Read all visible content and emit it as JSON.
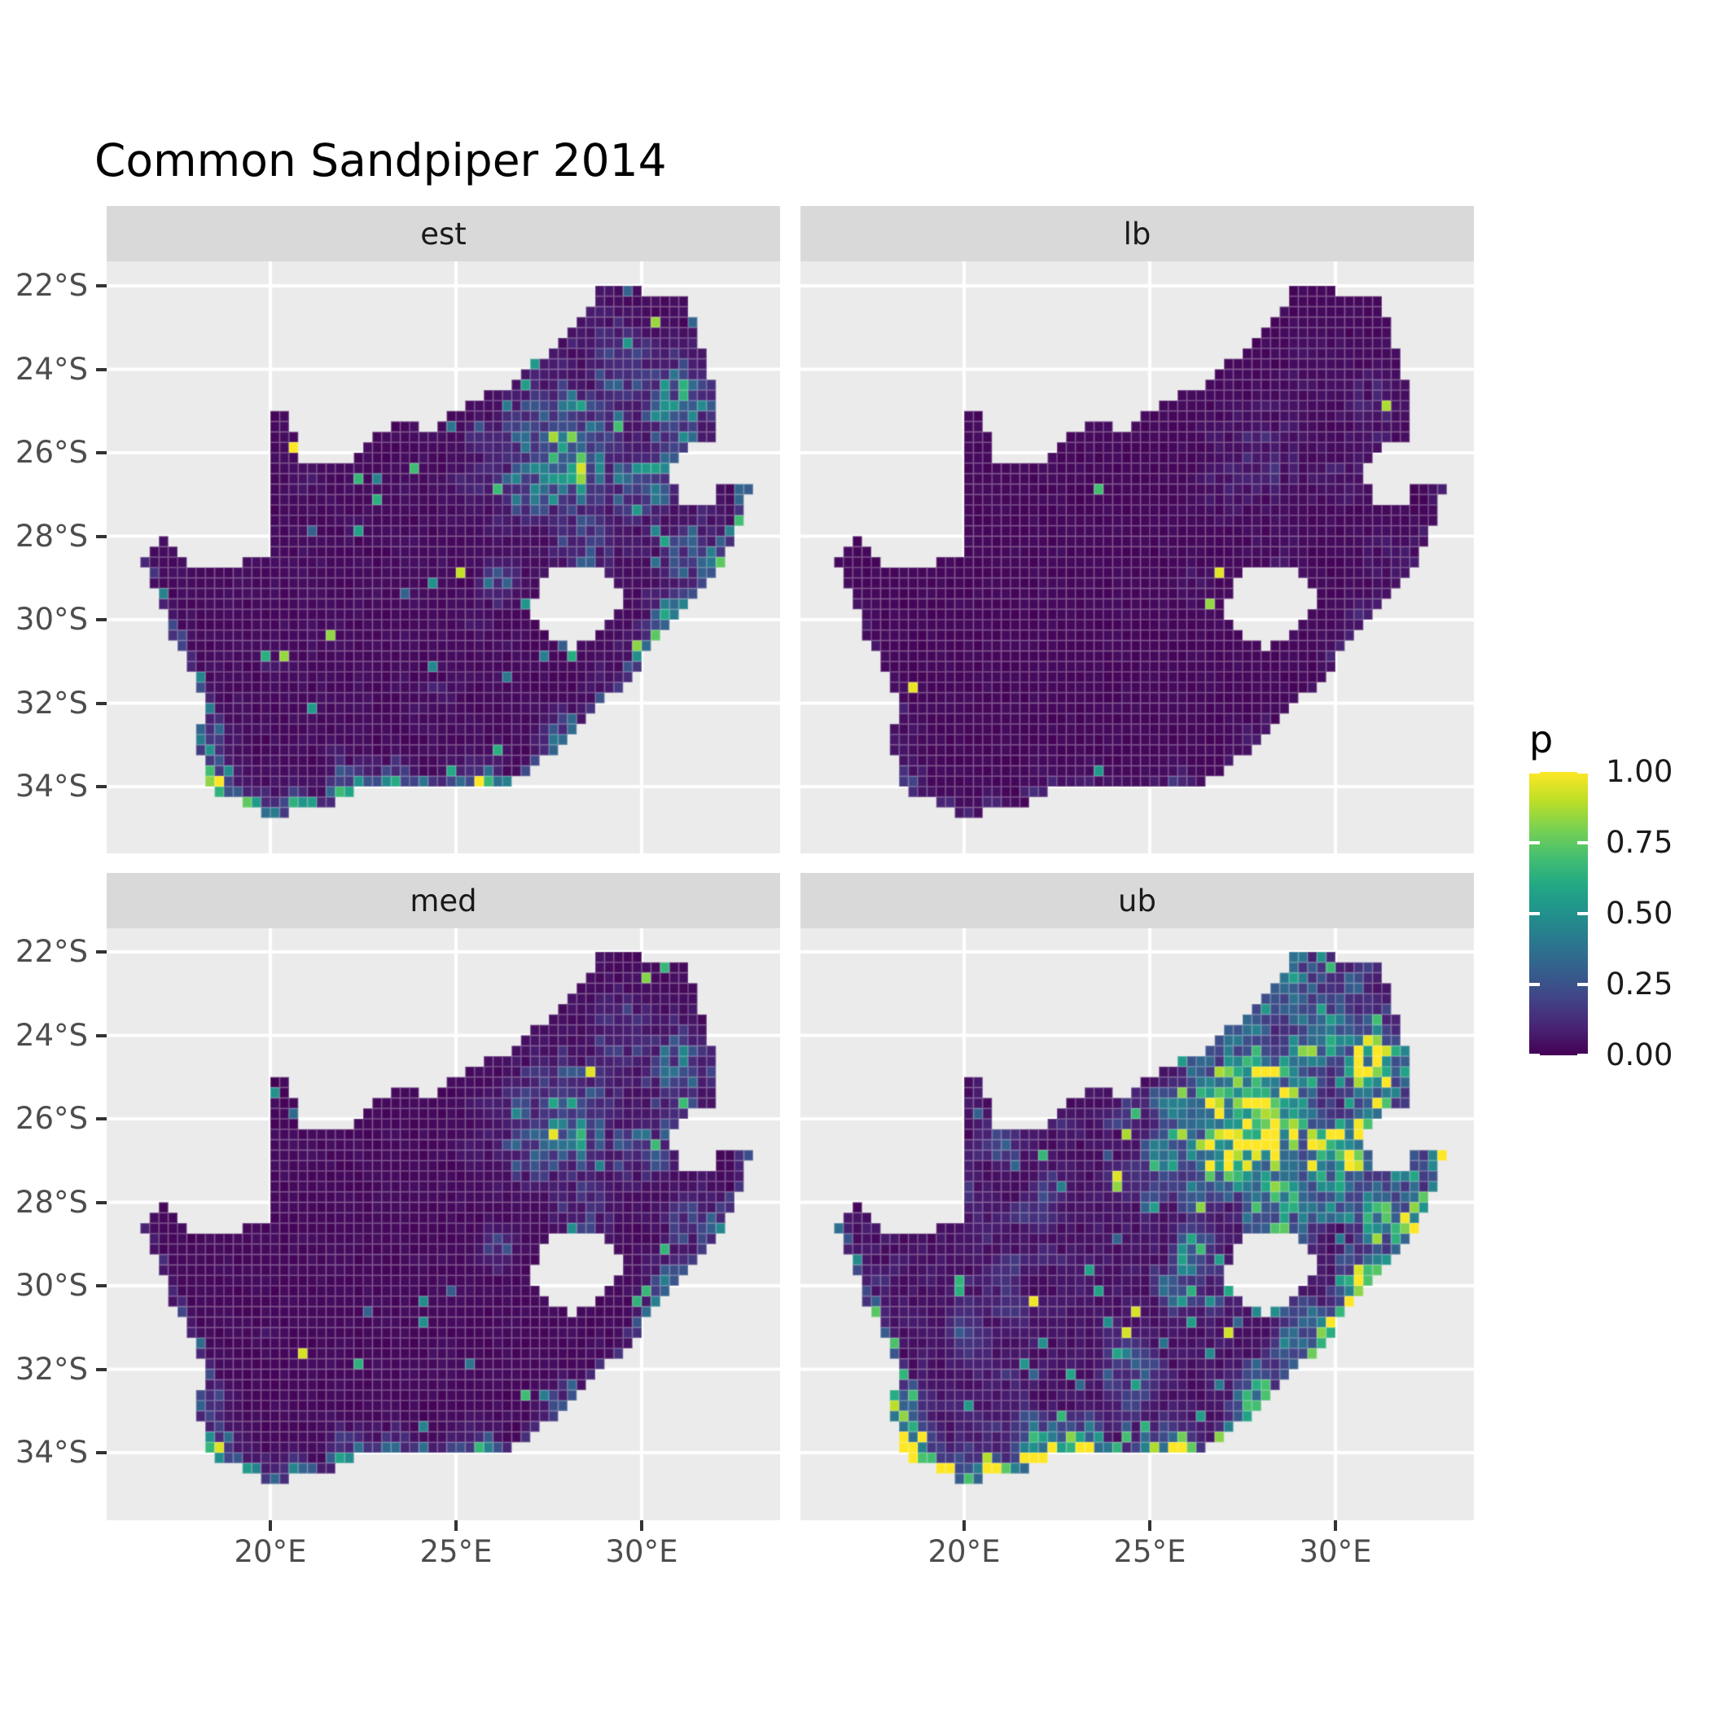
{
  "title": "Common Sandpiper 2014",
  "facets": [
    {
      "id": "est",
      "label": "est"
    },
    {
      "id": "lb",
      "label": "lb"
    },
    {
      "id": "med",
      "label": "med"
    },
    {
      "id": "ub",
      "label": "ub"
    }
  ],
  "axes": {
    "x": {
      "ticks": [
        {
          "label": "20°E",
          "value": 20
        },
        {
          "label": "25°E",
          "value": 25
        },
        {
          "label": "30°E",
          "value": 30
        }
      ]
    },
    "y": {
      "ticks": [
        {
          "label": "22°S",
          "value": -22
        },
        {
          "label": "24°S",
          "value": -24
        },
        {
          "label": "26°S",
          "value": -26
        },
        {
          "label": "28°S",
          "value": -28
        },
        {
          "label": "30°S",
          "value": -30
        },
        {
          "label": "32°S",
          "value": -32
        },
        {
          "label": "34°S",
          "value": -34
        }
      ]
    }
  },
  "legend": {
    "title": "p",
    "ticks": [
      {
        "label": "1.00",
        "value": 1.0
      },
      {
        "label": "0.75",
        "value": 0.75
      },
      {
        "label": "0.50",
        "value": 0.5
      },
      {
        "label": "0.25",
        "value": 0.25
      },
      {
        "label": "0.00",
        "value": 0.0
      }
    ]
  },
  "colors": {
    "page_bg": "#FFFFFF",
    "panel_bg": "#EBEBEB",
    "strip_bg": "#D9D9D9",
    "grid": "#FFFFFF",
    "axis_text": "#4D4D4D",
    "strip_text": "#1A1A1A",
    "tick_mark": "#333333",
    "title_text": "#000000",
    "cell_seam": "rgba(255,255,255,0.22)"
  },
  "viridis": [
    "#440154",
    "#482475",
    "#414487",
    "#355f8d",
    "#2a788e",
    "#21918c",
    "#22a884",
    "#44bf70",
    "#7ad151",
    "#bddf26",
    "#fde725"
  ],
  "chart_data": {
    "type": "heatmap",
    "title": "Common Sandpiper 2014",
    "region": "South Africa (Lesotho shown as hole, Eswatini as notch)",
    "facets": [
      "est",
      "lb",
      "med",
      "ub"
    ],
    "value_name": "p",
    "value_range": [
      0,
      1
    ],
    "grid_cell_deg": 0.25,
    "x_axis": {
      "labels": [
        "20°E",
        "25°E",
        "30°E"
      ],
      "ticks_lon": [
        20,
        25,
        30
      ],
      "range_lon": [
        15.59,
        33.73
      ]
    },
    "y_axis": {
      "labels": [
        "22°S",
        "24°S",
        "26°S",
        "28°S",
        "30°S",
        "32°S",
        "34°S"
      ],
      "ticks_lat": [
        -22,
        -24,
        -26,
        -28,
        -30,
        -32,
        -34
      ],
      "range_lat": [
        -35.6,
        -21.41
      ]
    },
    "legend": {
      "title": "p",
      "tick_values": [
        0,
        0.25,
        0.5,
        0.75,
        1
      ],
      "tick_labels": [
        "0.00",
        "0.25",
        "0.50",
        "0.75",
        "1.00"
      ],
      "palette": "viridis",
      "position": "right"
    },
    "facet_appearance": {
      "est": "mostly near-zero dark purple; bright mottled hotspot over Gauteng (28E,26S); green/yellow speckle along south, west and KwaZulu-Natal coasts and across the north-east",
      "lb": "almost uniformly near zero with a handful of isolated bright cells",
      "med": "similar to est but dimmer and sparser",
      "ub": "much brighter: large yellow blob over Gauteng, dense green/yellow patches across the north-east and along all coasts, scattered teal inland"
    },
    "boundary_lonlat": [
      [
        16.45,
        -28.6
      ],
      [
        16.7,
        -28.3
      ],
      [
        17.0,
        -28.05
      ],
      [
        17.35,
        -28.2
      ],
      [
        17.6,
        -28.5
      ],
      [
        18.1,
        -28.82
      ],
      [
        18.75,
        -28.87
      ],
      [
        19.3,
        -28.62
      ],
      [
        19.7,
        -28.5
      ],
      [
        19.99,
        -28.42
      ],
      [
        19.99,
        -24.77
      ],
      [
        20.35,
        -25.05
      ],
      [
        20.6,
        -25.45
      ],
      [
        20.68,
        -25.9
      ],
      [
        20.72,
        -26.25
      ],
      [
        20.9,
        -26.32
      ],
      [
        21.3,
        -26.32
      ],
      [
        21.7,
        -26.22
      ],
      [
        22.25,
        -26.1
      ],
      [
        22.75,
        -25.6
      ],
      [
        23.3,
        -25.28
      ],
      [
        23.9,
        -25.35
      ],
      [
        24.45,
        -25.6
      ],
      [
        24.9,
        -25.0
      ],
      [
        25.7,
        -24.6
      ],
      [
        26.3,
        -24.45
      ],
      [
        27.0,
        -23.95
      ],
      [
        27.6,
        -23.55
      ],
      [
        28.3,
        -22.8
      ],
      [
        28.85,
        -22.1
      ],
      [
        29.9,
        -22.05
      ],
      [
        30.2,
        -22.3
      ],
      [
        31.2,
        -22.3
      ],
      [
        31.5,
        -22.9
      ],
      [
        31.75,
        -23.85
      ],
      [
        31.95,
        -24.4
      ],
      [
        32.05,
        -25.15
      ],
      [
        31.97,
        -25.9
      ],
      [
        31.4,
        -25.72
      ],
      [
        30.8,
        -26.3
      ],
      [
        30.9,
        -26.95
      ],
      [
        31.25,
        -27.35
      ],
      [
        31.95,
        -27.3
      ],
      [
        32.12,
        -26.86
      ],
      [
        32.88,
        -26.86
      ],
      [
        32.55,
        -28.1
      ],
      [
        31.95,
        -28.95
      ],
      [
        31.05,
        -29.9
      ],
      [
        30.65,
        -30.35
      ],
      [
        30.0,
        -31.0
      ],
      [
        29.35,
        -31.7
      ],
      [
        28.45,
        -32.35
      ],
      [
        27.85,
        -33.05
      ],
      [
        27.05,
        -33.55
      ],
      [
        26.5,
        -33.9
      ],
      [
        25.65,
        -34.05
      ],
      [
        25.0,
        -34.0
      ],
      [
        24.2,
        -34.1
      ],
      [
        23.35,
        -34.1
      ],
      [
        22.6,
        -34.05
      ],
      [
        22.15,
        -34.2
      ],
      [
        21.6,
        -34.4
      ],
      [
        20.9,
        -34.45
      ],
      [
        20.0,
        -34.82
      ],
      [
        19.3,
        -34.45
      ],
      [
        18.85,
        -34.12
      ],
      [
        18.45,
        -34.35
      ],
      [
        18.35,
        -33.9
      ],
      [
        18.25,
        -33.5
      ],
      [
        17.95,
        -32.8
      ],
      [
        18.25,
        -32.1
      ],
      [
        17.9,
        -31.4
      ],
      [
        17.65,
        -30.9
      ],
      [
        17.3,
        -30.35
      ],
      [
        17.05,
        -29.65
      ],
      [
        16.8,
        -29.1
      ]
    ],
    "lesotho_hole_lonlat": [
      [
        27.05,
        -29.62
      ],
      [
        27.35,
        -29.0
      ],
      [
        27.8,
        -28.78
      ],
      [
        28.55,
        -28.72
      ],
      [
        29.05,
        -28.95
      ],
      [
        29.4,
        -29.35
      ],
      [
        29.42,
        -29.6
      ],
      [
        29.1,
        -30.05
      ],
      [
        28.6,
        -30.45
      ],
      [
        28.1,
        -30.78
      ],
      [
        27.6,
        -30.4
      ],
      [
        27.15,
        -30.0
      ]
    ],
    "coastline_lonlat": [
      [
        16.45,
        -28.6
      ],
      [
        16.8,
        -29.1
      ],
      [
        17.05,
        -29.65
      ],
      [
        17.3,
        -30.35
      ],
      [
        17.65,
        -30.9
      ],
      [
        17.9,
        -31.4
      ],
      [
        18.25,
        -32.1
      ],
      [
        17.95,
        -32.8
      ],
      [
        18.25,
        -33.5
      ],
      [
        18.35,
        -33.9
      ],
      [
        18.45,
        -34.35
      ],
      [
        18.85,
        -34.12
      ],
      [
        19.3,
        -34.45
      ],
      [
        20.0,
        -34.82
      ],
      [
        20.9,
        -34.45
      ],
      [
        21.6,
        -34.4
      ],
      [
        22.15,
        -34.2
      ],
      [
        22.6,
        -34.05
      ],
      [
        23.35,
        -34.1
      ],
      [
        24.2,
        -34.1
      ],
      [
        25.0,
        -34.0
      ],
      [
        25.65,
        -34.05
      ],
      [
        26.5,
        -33.9
      ],
      [
        27.05,
        -33.55
      ],
      [
        27.85,
        -33.05
      ],
      [
        28.45,
        -32.35
      ],
      [
        29.35,
        -31.7
      ],
      [
        30.0,
        -31.0
      ],
      [
        30.65,
        -30.35
      ],
      [
        31.05,
        -29.9
      ],
      [
        31.95,
        -28.95
      ],
      [
        32.55,
        -28.1
      ],
      [
        32.88,
        -26.86
      ]
    ],
    "hotspots": [
      {
        "lon": 28.0,
        "lat": -26.15,
        "amp": 0.95,
        "sig": 0.3
      },
      {
        "lon": 28.25,
        "lat": -25.75,
        "amp": 0.65,
        "sig": 0.3
      },
      {
        "lon": 27.95,
        "lat": -26.1,
        "amp": 0.55,
        "sig": 0.85
      },
      {
        "lon": 29.45,
        "lat": -23.9,
        "amp": 0.28,
        "sig": 0.55
      },
      {
        "lon": 31.0,
        "lat": -24.7,
        "amp": 0.38,
        "sig": 0.65
      },
      {
        "lon": 30.95,
        "lat": -25.45,
        "amp": 0.32,
        "sig": 0.45
      },
      {
        "lon": 30.15,
        "lat": -26.55,
        "amp": 0.3,
        "sig": 0.55
      },
      {
        "lon": 29.25,
        "lat": -26.55,
        "amp": 0.25,
        "sig": 0.45
      },
      {
        "lon": 18.45,
        "lat": -33.95,
        "amp": 0.8,
        "sig": 0.35
      },
      {
        "lon": 18.4,
        "lat": -32.9,
        "amp": 0.35,
        "sig": 0.3
      },
      {
        "lon": 19.4,
        "lat": -34.5,
        "amp": 0.35,
        "sig": 0.3
      },
      {
        "lon": 20.6,
        "lat": -34.4,
        "amp": 0.3,
        "sig": 0.3
      },
      {
        "lon": 22.2,
        "lat": -34.05,
        "amp": 0.4,
        "sig": 0.35
      },
      {
        "lon": 23.3,
        "lat": -33.95,
        "amp": 0.35,
        "sig": 0.3
      },
      {
        "lon": 25.6,
        "lat": -33.9,
        "amp": 0.42,
        "sig": 0.35
      },
      {
        "lon": 27.9,
        "lat": -32.95,
        "amp": 0.35,
        "sig": 0.35
      },
      {
        "lon": 30.95,
        "lat": -29.85,
        "amp": 0.5,
        "sig": 0.4
      },
      {
        "lon": 30.3,
        "lat": -30.65,
        "amp": 0.38,
        "sig": 0.32
      },
      {
        "lon": 32.0,
        "lat": -28.7,
        "amp": 0.4,
        "sig": 0.45
      },
      {
        "lon": 31.35,
        "lat": -28.4,
        "amp": 0.28,
        "sig": 0.5
      },
      {
        "lon": 26.2,
        "lat": -29.1,
        "amp": 0.26,
        "sig": 0.3
      },
      {
        "lon": 26.9,
        "lat": -26.75,
        "amp": 0.3,
        "sig": 0.45
      },
      {
        "lon": 28.4,
        "lat": -28.3,
        "amp": 0.22,
        "sig": 0.45
      }
    ],
    "facet_params": {
      "est": {
        "seed": 101,
        "base": 0.018,
        "mult": 1.0,
        "coastAmp": 0.5,
        "blotchThresh": 0.66,
        "blotchAmp": 0.18,
        "speckleHi": 0.0045,
        "speckleMid": 0.035
      },
      "lb": {
        "seed": 202,
        "base": 0.01,
        "mult": 0.15,
        "coastAmp": 0.07,
        "blotchThresh": 0.95,
        "blotchAmp": 0.0,
        "speckleHi": 0.0028,
        "speckleMid": 0.005
      },
      "med": {
        "seed": 303,
        "base": 0.014,
        "mult": 0.7,
        "coastAmp": 0.32,
        "blotchThresh": 0.7,
        "blotchAmp": 0.12,
        "speckleHi": 0.003,
        "speckleMid": 0.02
      },
      "ub": {
        "seed": 404,
        "base": 0.04,
        "mult": 2.1,
        "coastAmp": 0.9,
        "blotchThresh": 0.5,
        "blotchAmp": 0.5,
        "speckleHi": 0.012,
        "speckleMid": 0.09
      }
    },
    "noise_seeds": {
      "shared": 11,
      "coast": 7,
      "blotch1": 5,
      "blotch2": 9
    }
  }
}
